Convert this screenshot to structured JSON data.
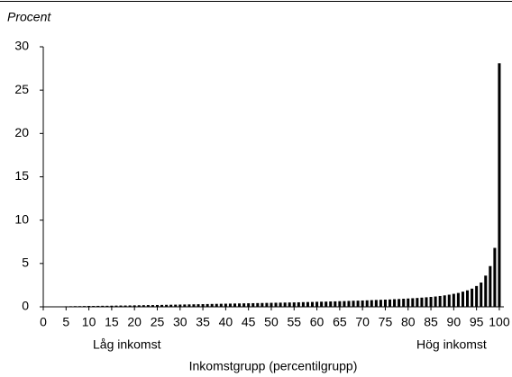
{
  "chart_data": {
    "type": "bar",
    "y_label": "Procent",
    "x_label": "Inkomstgrupp (percentilgrupp)",
    "annotations": [
      "Låg inkomst",
      "Hög inkomst"
    ],
    "x": [
      1,
      2,
      3,
      4,
      5,
      6,
      7,
      8,
      9,
      10,
      11,
      12,
      13,
      14,
      15,
      16,
      17,
      18,
      19,
      20,
      21,
      22,
      23,
      24,
      25,
      26,
      27,
      28,
      29,
      30,
      31,
      32,
      33,
      34,
      35,
      36,
      37,
      38,
      39,
      40,
      41,
      42,
      43,
      44,
      45,
      46,
      47,
      48,
      49,
      50,
      51,
      52,
      53,
      54,
      55,
      56,
      57,
      58,
      59,
      60,
      61,
      62,
      63,
      64,
      65,
      66,
      67,
      68,
      69,
      70,
      71,
      72,
      73,
      74,
      75,
      76,
      77,
      78,
      79,
      80,
      81,
      82,
      83,
      84,
      85,
      86,
      87,
      88,
      89,
      90,
      91,
      92,
      93,
      94,
      95,
      96,
      97,
      98,
      99,
      100
    ],
    "values": [
      0.02,
      0.03,
      0.04,
      0.05,
      0.06,
      0.07,
      0.08,
      0.08,
      0.09,
      0.1,
      0.1,
      0.11,
      0.12,
      0.12,
      0.13,
      0.14,
      0.15,
      0.15,
      0.16,
      0.17,
      0.18,
      0.19,
      0.2,
      0.2,
      0.21,
      0.22,
      0.23,
      0.24,
      0.25,
      0.26,
      0.27,
      0.28,
      0.29,
      0.3,
      0.31,
      0.32,
      0.33,
      0.34,
      0.35,
      0.36,
      0.37,
      0.38,
      0.39,
      0.4,
      0.41,
      0.42,
      0.43,
      0.44,
      0.45,
      0.46,
      0.47,
      0.48,
      0.49,
      0.5,
      0.51,
      0.52,
      0.54,
      0.55,
      0.56,
      0.58,
      0.59,
      0.6,
      0.62,
      0.63,
      0.65,
      0.66,
      0.68,
      0.7,
      0.71,
      0.73,
      0.75,
      0.77,
      0.79,
      0.81,
      0.83,
      0.85,
      0.88,
      0.9,
      0.93,
      0.96,
      0.99,
      1.02,
      1.06,
      1.1,
      1.14,
      1.19,
      1.25,
      1.32,
      1.4,
      1.5,
      1.6,
      1.75,
      1.9,
      2.1,
      2.4,
      2.8,
      3.6,
      4.7,
      6.8,
      28.1
    ],
    "color": "#000000",
    "xlim": [
      0,
      101
    ],
    "xticks": [
      0,
      5,
      10,
      15,
      20,
      25,
      30,
      35,
      40,
      45,
      50,
      55,
      60,
      65,
      70,
      75,
      80,
      85,
      90,
      95,
      100
    ],
    "ylim": [
      0,
      30
    ],
    "yticks": [
      0,
      5,
      10,
      15,
      20,
      25,
      30
    ]
  }
}
